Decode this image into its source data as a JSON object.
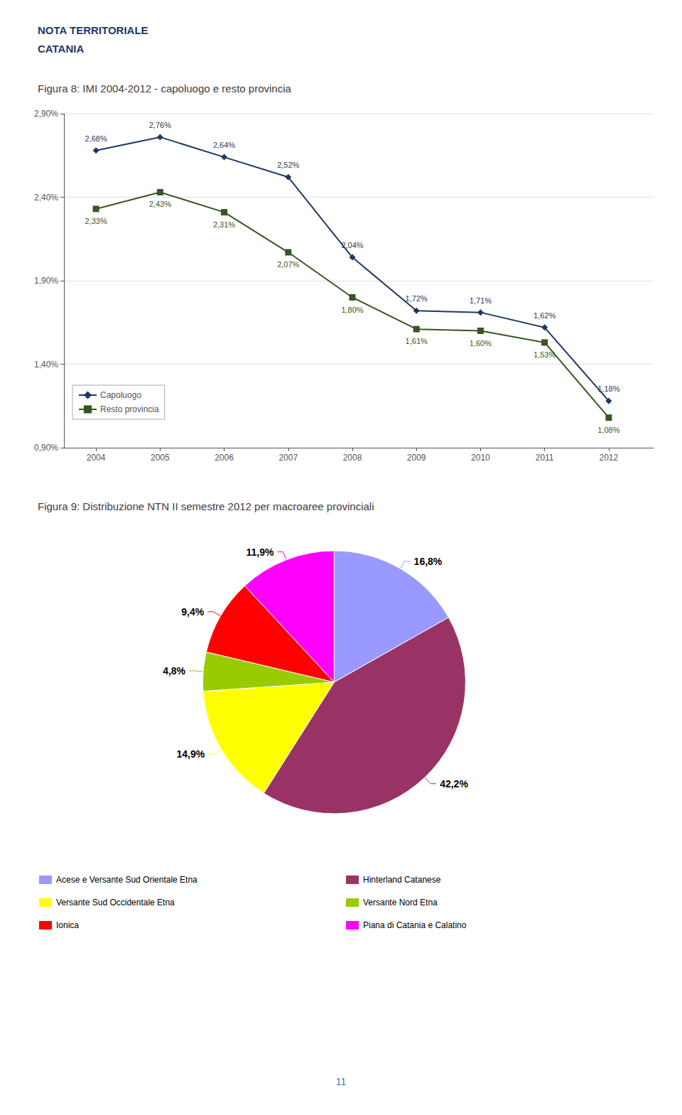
{
  "chart_data": [
    {
      "type": "line",
      "title": "Figura 8: IMI 2004-2012 - capoluogo e resto provincia",
      "annotations": [
        "NOTA TERRITORIALE",
        "CATANIA"
      ],
      "x": [
        2004,
        2005,
        2006,
        2007,
        2008,
        2009,
        2010,
        2011,
        2012
      ],
      "xlim": [
        2003.5,
        2012.7
      ],
      "xticks": [
        2004,
        2005,
        2006,
        2007,
        2008,
        2009,
        2010,
        2011,
        2012
      ],
      "ylim": [
        0.9,
        2.9
      ],
      "yticks": [
        {
          "value": 0.9,
          "label": "0,90%"
        },
        {
          "value": 1.4,
          "label": "1,40%"
        },
        {
          "value": 1.9,
          "label": "1,90%"
        },
        {
          "value": 2.4,
          "label": "2,40%"
        },
        {
          "value": 2.9,
          "label": "2,90%"
        }
      ],
      "grid": true,
      "legend": "lower left",
      "data_labels": true,
      "series": [
        {
          "name": "Capoluogo",
          "color": "#1F3864",
          "marker": "diamond",
          "values": [
            2.68,
            2.76,
            2.64,
            2.52,
            2.04,
            1.72,
            1.71,
            1.62,
            1.18
          ],
          "value_labels": [
            "2,68%",
            "2,76%",
            "2,64%",
            "2,52%",
            "2,04%",
            "1,72%",
            "1,71%",
            "1,62%",
            "1,18%"
          ]
        },
        {
          "name": "Resto provincia",
          "color": "#375623",
          "marker": "square",
          "values": [
            2.33,
            2.43,
            2.31,
            2.07,
            1.8,
            1.61,
            1.6,
            1.53,
            1.08
          ],
          "value_labels": [
            "2,33%",
            "2,43%",
            "2,31%",
            "2,07%",
            "1,80%",
            "1,61%",
            "1,60%",
            "1,53%",
            "1,08%"
          ]
        }
      ]
    },
    {
      "type": "pie",
      "title": "Figura 9: Distribuzione NTN II semestre 2012 per macroaree provinciali",
      "annotations": [
        "11"
      ],
      "categories": [
        "Acese e Versante Sud Orientale Etna",
        "Hinterland Catanese",
        "Versante Sud Occidentale Etna",
        "Versante Nord Etna",
        "Ionica",
        "Piana di Catania e Calatino"
      ],
      "values": [
        16.8,
        42.2,
        14.9,
        4.8,
        9.4,
        11.9
      ],
      "value_labels": [
        "16,8%",
        "42,2%",
        "14,9%",
        "4,8%",
        "9,4%",
        "11,9%"
      ],
      "colors": [
        "#9999FF",
        "#993366",
        "#FFFF00",
        "#99CC00",
        "#FF0000",
        "#FF00FF"
      ],
      "data_labels": true,
      "legend": "bottom"
    }
  ]
}
